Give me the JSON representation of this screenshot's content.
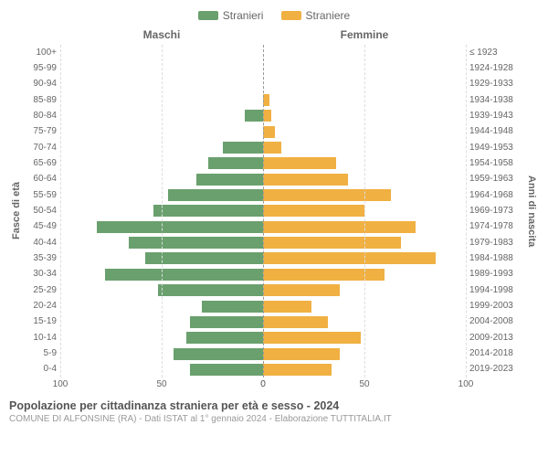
{
  "legend": {
    "male": {
      "label": "Stranieri",
      "color": "#6aa06e"
    },
    "female": {
      "label": "Straniere",
      "color": "#f0b042"
    }
  },
  "headers": {
    "left": "Maschi",
    "right": "Femmine"
  },
  "axis_labels": {
    "left": "Fasce di età",
    "right": "Anni di nascita"
  },
  "xmax": 100,
  "xticks_left": [
    100,
    50,
    0
  ],
  "xticks_right": [
    0,
    50,
    100
  ],
  "grid_color": "#dddddd",
  "center_color": "#999999",
  "background_color": "#ffffff",
  "ages": [
    {
      "age": "100+",
      "birth": "≤ 1923",
      "m": 0,
      "f": 0
    },
    {
      "age": "95-99",
      "birth": "1924-1928",
      "m": 0,
      "f": 0
    },
    {
      "age": "90-94",
      "birth": "1929-1933",
      "m": 0,
      "f": 0
    },
    {
      "age": "85-89",
      "birth": "1934-1938",
      "m": 0,
      "f": 3
    },
    {
      "age": "80-84",
      "birth": "1939-1943",
      "m": 9,
      "f": 4
    },
    {
      "age": "75-79",
      "birth": "1944-1948",
      "m": 0,
      "f": 6
    },
    {
      "age": "70-74",
      "birth": "1949-1953",
      "m": 20,
      "f": 9
    },
    {
      "age": "65-69",
      "birth": "1954-1958",
      "m": 27,
      "f": 36
    },
    {
      "age": "60-64",
      "birth": "1959-1963",
      "m": 33,
      "f": 42
    },
    {
      "age": "55-59",
      "birth": "1964-1968",
      "m": 47,
      "f": 63
    },
    {
      "age": "50-54",
      "birth": "1969-1973",
      "m": 54,
      "f": 50
    },
    {
      "age": "45-49",
      "birth": "1974-1978",
      "m": 82,
      "f": 75
    },
    {
      "age": "40-44",
      "birth": "1979-1983",
      "m": 66,
      "f": 68
    },
    {
      "age": "35-39",
      "birth": "1984-1988",
      "m": 58,
      "f": 85
    },
    {
      "age": "30-34",
      "birth": "1989-1993",
      "m": 78,
      "f": 60
    },
    {
      "age": "25-29",
      "birth": "1994-1998",
      "m": 52,
      "f": 38
    },
    {
      "age": "20-24",
      "birth": "1999-2003",
      "m": 30,
      "f": 24
    },
    {
      "age": "15-19",
      "birth": "2004-2008",
      "m": 36,
      "f": 32
    },
    {
      "age": "10-14",
      "birth": "2009-2013",
      "m": 38,
      "f": 48
    },
    {
      "age": "5-9",
      "birth": "2014-2018",
      "m": 44,
      "f": 38
    },
    {
      "age": "0-4",
      "birth": "2019-2023",
      "m": 36,
      "f": 34
    }
  ],
  "footer": {
    "title": "Popolazione per cittadinanza straniera per età e sesso - 2024",
    "sub": "COMUNE DI ALFONSINE (RA) - Dati ISTAT al 1° gennaio 2024 - Elaborazione TUTTITALIA.IT"
  }
}
